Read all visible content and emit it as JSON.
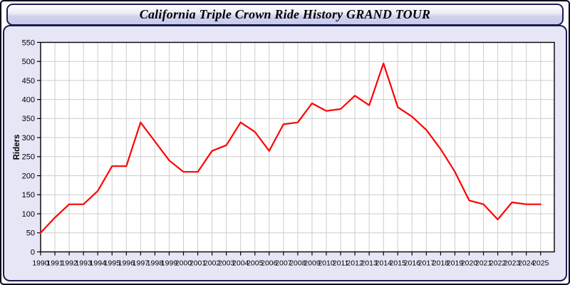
{
  "header": {
    "title": "California Triple Crown Ride History GRAND TOUR"
  },
  "colors": {
    "line": "#ff0000",
    "panel_bg": "#e6e6f7",
    "panel_border": "#1b1b52",
    "plot_bg": "#ffffff",
    "grid": "#cccccc",
    "axis": "#000000",
    "tick_label": "#000000"
  },
  "chart_data": {
    "type": "line",
    "title": "California Triple Crown Ride History GRAND TOUR",
    "x": [
      1990,
      1991,
      1992,
      1993,
      1994,
      1995,
      1996,
      1997,
      1998,
      1999,
      2000,
      2001,
      2002,
      2003,
      2004,
      2005,
      2006,
      2007,
      2008,
      2009,
      2010,
      2011,
      2012,
      2013,
      2014,
      2015,
      2016,
      2017,
      2018,
      2019,
      2020,
      2021,
      2022,
      2023,
      2024,
      2025
    ],
    "series": [
      {
        "name": "Riders",
        "color": "#ff0000",
        "values": [
          50,
          90,
          125,
          125,
          160,
          225,
          225,
          340,
          290,
          240,
          210,
          210,
          265,
          280,
          340,
          315,
          265,
          335,
          340,
          390,
          370,
          375,
          410,
          385,
          495,
          380,
          355,
          320,
          270,
          210,
          135,
          125,
          85,
          130,
          125,
          125
        ]
      }
    ],
    "xlabel": "",
    "ylabel": "Riders",
    "ylim": [
      0,
      550
    ],
    "ytick_step": 50,
    "grid": true,
    "legend": "none"
  }
}
